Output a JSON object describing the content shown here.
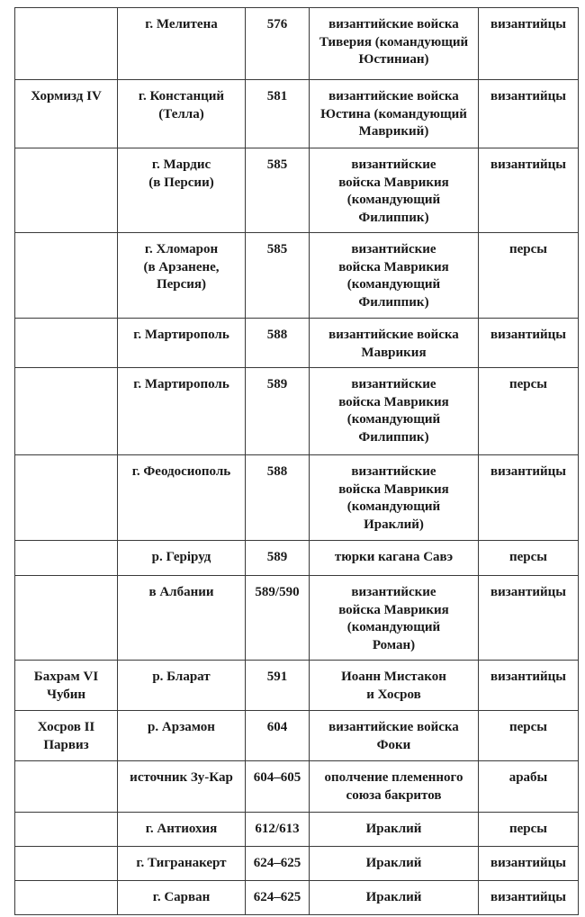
{
  "rows": [
    {
      "ruler": "",
      "place": "г. Мелитена",
      "year": "576",
      "opponent": "византийские войска\nТиверия (командующий\nЮстиниан)",
      "winner": "византийцы"
    },
    {
      "ruler": "Хормизд IV",
      "place": "г. Констанций\n(Телла)",
      "year": "581",
      "opponent": "византийские войска\nЮстина (командующий\nМаврикий)",
      "winner": "византийцы"
    },
    {
      "ruler": "",
      "place": "г. Мардис\n(в Персии)",
      "year": "585",
      "opponent": "византийские\nвойска Маврикия\n(командующий\nФилиппик)",
      "winner": "византийцы"
    },
    {
      "ruler": "",
      "place": "г. Хломарон\n(в Арзанене,\nПерсия)",
      "year": "585",
      "opponent": "византийские\nвойска Маврикия\n(командующий\nФилиппик)",
      "winner": "персы"
    },
    {
      "ruler": "",
      "place": "г. Мартирополь",
      "year": "588",
      "opponent": "византийские войска\nМаврикия",
      "winner": "византийцы"
    },
    {
      "ruler": "",
      "place": "г. Мартирополь",
      "year": "589",
      "opponent": "византийские\nвойска Маврикия\n(командующий\nФилиппик)",
      "winner": "персы"
    },
    {
      "ruler": "",
      "place": "г. Феодосиополь",
      "year": "588",
      "opponent": "византийские\nвойска Маврикия\n(командующий\nИраклий)",
      "winner": "византийцы"
    },
    {
      "ruler": "",
      "place": "р. Геріруд",
      "year": "589",
      "opponent": "тюрки кагана Савэ",
      "winner": "персы"
    },
    {
      "ruler": "",
      "place": "в Албании",
      "year": "589/590",
      "opponent": "византийские\nвойска Маврикия\n(командующий\nРоман)",
      "winner": "византийцы"
    },
    {
      "ruler": "Бахрам VI\nЧубин",
      "place": "р. Бларат",
      "year": "591",
      "opponent": "Иоанн Мистакон\nи Хосров",
      "winner": "византийцы"
    },
    {
      "ruler": "Хосров II\nПарвиз",
      "place": "р. Арзамон",
      "year": "604",
      "opponent": "византийские войска\nФоки",
      "winner": "персы"
    },
    {
      "ruler": "",
      "place": "источник Зу-Кар",
      "year": "604–605",
      "opponent": "ополчение племенного\nсоюза бакритов",
      "winner": "арабы"
    },
    {
      "ruler": "",
      "place": "г. Антиохия",
      "year": "612/613",
      "opponent": "Ираклий",
      "winner": "персы"
    },
    {
      "ruler": "",
      "place": "г. Тигранакерт",
      "year": "624–625",
      "opponent": "Ираклий",
      "winner": "византийцы"
    },
    {
      "ruler": "",
      "place": "г. Сарван",
      "year": "624–625",
      "opponent": "Ираклий",
      "winner": "византийцы"
    }
  ]
}
